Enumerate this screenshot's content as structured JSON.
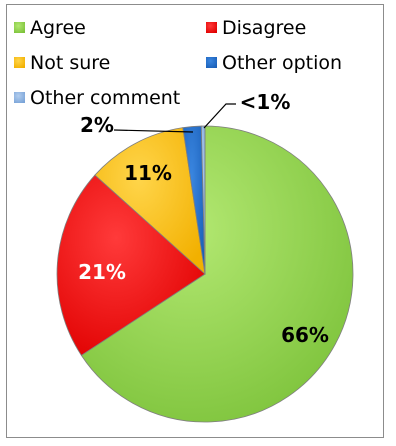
{
  "chart_data": {
    "type": "pie",
    "title": "",
    "series": [
      {
        "name": "",
        "slices": [
          {
            "label": "Agree",
            "value": 66,
            "display": "66%",
            "color": "#92d050"
          },
          {
            "label": "Disagree",
            "value": 21,
            "display": "21%",
            "color": "#ff0000"
          },
          {
            "label": "Not sure",
            "value": 11,
            "display": "11%",
            "color": "#ffc000"
          },
          {
            "label": "Other option",
            "value": 2,
            "display": "2%",
            "color": "#1f6fd0"
          },
          {
            "label": "Other comment",
            "value": 0.4,
            "display": "<1%",
            "color": "#8db3e2"
          }
        ]
      }
    ],
    "legend": {
      "position": "top",
      "entries": [
        "Agree",
        "Disagree",
        "Not sure",
        "Other option",
        "Other comment"
      ]
    }
  }
}
